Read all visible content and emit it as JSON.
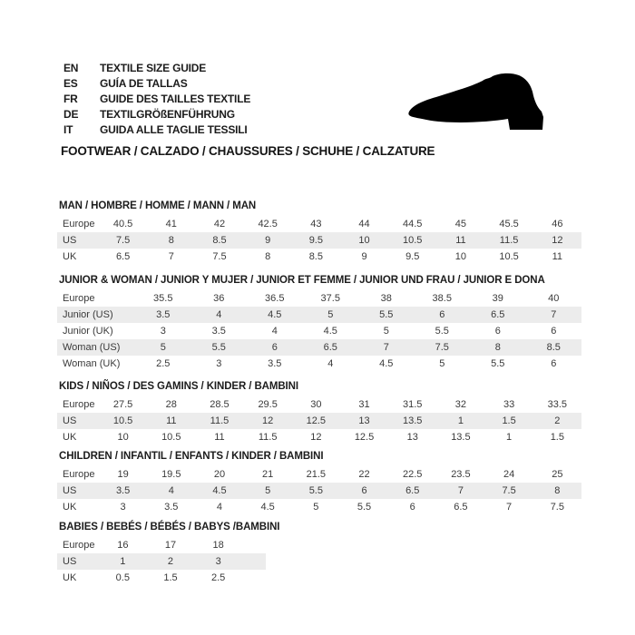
{
  "header": {
    "languages": [
      {
        "code": "EN",
        "text": "TEXTILE SIZE GUIDE"
      },
      {
        "code": "ES",
        "text": "GUÍA DE TALLAS"
      },
      {
        "code": "FR",
        "text": "GUIDE DES TAILLES TEXTILE"
      },
      {
        "code": "DE",
        "text": "TEXTILGRÖßENFÜHRUNG"
      },
      {
        "code": "IT",
        "text": "GUIDA ALLE TAGLIE TESSILI"
      }
    ],
    "category_line": "FOOTWEAR / CALZADO / CHAUSSURES / SCHUHE / CALZATURE",
    "shoe_icon": "dress-shoe-silhouette",
    "shoe_color": "#000000"
  },
  "colors": {
    "header_row_bg": "#c7c7c7",
    "alt_row_bg": "#ececec",
    "row_top_border": "#8d8d8d",
    "text": "#3a3a3a"
  },
  "tables": [
    {
      "title": "MAN / HOMBRE / HOMME / MANN / MAN",
      "rows": [
        {
          "label": "Europe",
          "values": [
            "40.5",
            "41",
            "42",
            "42.5",
            "43",
            "44",
            "44.5",
            "45",
            "45.5",
            "46"
          ]
        },
        {
          "label": "US",
          "values": [
            "7.5",
            "8",
            "8.5",
            "9",
            "9.5",
            "10",
            "10.5",
            "11",
            "11.5",
            "12"
          ]
        },
        {
          "label": "UK",
          "values": [
            "6.5",
            "7",
            "7.5",
            "8",
            "8.5",
            "9",
            "9.5",
            "10",
            "10.5",
            "11"
          ]
        }
      ]
    },
    {
      "title": "JUNIOR & WOMAN / JUNIOR Y MUJER / JUNIOR ET FEMME / JUNIOR UND FRAU / JUNIOR E DONA",
      "rows": [
        {
          "label": "Europe",
          "values": [
            "35.5",
            "36",
            "36.5",
            "37.5",
            "38",
            "38.5",
            "39",
            "40"
          ]
        },
        {
          "label": "Junior (US)",
          "values": [
            "3.5",
            "4",
            "4.5",
            "5",
            "5.5",
            "6",
            "6.5",
            "7"
          ]
        },
        {
          "label": "Junior (UK)",
          "values": [
            "3",
            "3.5",
            "4",
            "4.5",
            "5",
            "5.5",
            "6",
            "6"
          ]
        },
        {
          "label": "Woman (US)",
          "values": [
            "5",
            "5.5",
            "6",
            "6.5",
            "7",
            "7.5",
            "8",
            "8.5"
          ]
        },
        {
          "label": "Woman (UK)",
          "values": [
            "2.5",
            "3",
            "3.5",
            "4",
            "4.5",
            "5",
            "5.5",
            "6"
          ]
        }
      ]
    },
    {
      "title": "KIDS / NIÑOS / DES GAMINS / KINDER / BAMBINI",
      "rows": [
        {
          "label": "Europe",
          "values": [
            "27.5",
            "28",
            "28.5",
            "29.5",
            "30",
            "31",
            "31.5",
            "32",
            "33",
            "33.5"
          ]
        },
        {
          "label": "US",
          "values": [
            "10.5",
            "11",
            "11.5",
            "12",
            "12.5",
            "13",
            "13.5",
            "1",
            "1.5",
            "2"
          ]
        },
        {
          "label": "UK",
          "values": [
            "10",
            "10.5",
            "11",
            "11.5",
            "12",
            "12.5",
            "13",
            "13.5",
            "1",
            "1.5"
          ]
        }
      ]
    },
    {
      "title": "CHILDREN / INFANTIL / ENFANTS / KINDER / BAMBINI",
      "rows": [
        {
          "label": "Europe",
          "values": [
            "19",
            "19.5",
            "20",
            "21",
            "21.5",
            "22",
            "22.5",
            "23.5",
            "24",
            "25"
          ]
        },
        {
          "label": "US",
          "values": [
            "3.5",
            "4",
            "4.5",
            "5",
            "5.5",
            "6",
            "6.5",
            "7",
            "7.5",
            "8"
          ]
        },
        {
          "label": "UK",
          "values": [
            "3",
            "3.5",
            "4",
            "4.5",
            "5",
            "5.5",
            "6",
            "6.5",
            "7",
            "7.5"
          ]
        }
      ]
    },
    {
      "title": "BABIES  / BEBÉS / BÉBÉS / BABYS /BAMBINI",
      "rows": [
        {
          "label": "Europe",
          "values": [
            "16",
            "17",
            "18"
          ]
        },
        {
          "label": "US",
          "values": [
            "1",
            "2",
            "3"
          ]
        },
        {
          "label": "UK",
          "values": [
            "0.5",
            "1.5",
            "2.5"
          ]
        }
      ]
    }
  ]
}
